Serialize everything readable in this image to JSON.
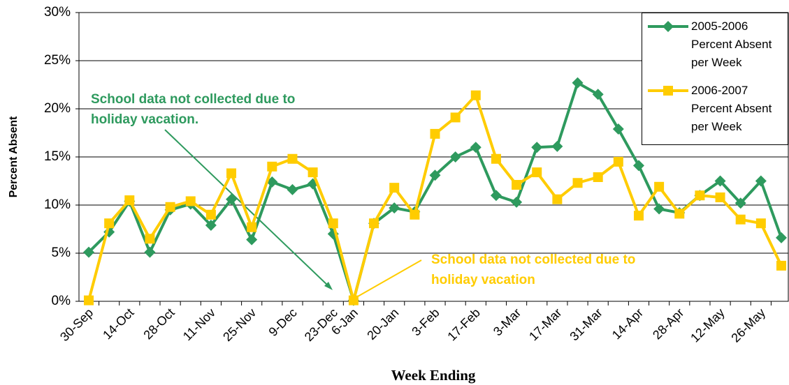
{
  "chart_data": {
    "type": "line",
    "x_label": "Week Ending",
    "y_label": "Percent Absent",
    "categories": [
      "30-Sep",
      null,
      "14-Oct",
      null,
      "28-Oct",
      null,
      "11-Nov",
      null,
      "25-Nov",
      null,
      "9-Dec",
      null,
      "23-Dec",
      "6-Jan",
      null,
      "20-Jan",
      null,
      "3-Feb",
      null,
      "17-Feb",
      null,
      "3-Mar",
      null,
      "17-Mar",
      null,
      "31-Mar",
      null,
      "14-Apr",
      null,
      "28-Apr",
      null,
      "12-May",
      null,
      "26-May",
      null
    ],
    "series": [
      {
        "name": "2005-2006 Percent Absent per Week",
        "color": "#2e9a5e",
        "marker": "diamond",
        "values": [
          5.1,
          7.2,
          10.4,
          5.1,
          9.5,
          10.1,
          7.9,
          10.6,
          6.4,
          12.4,
          11.6,
          12.2,
          7.0,
          0.1,
          8.1,
          9.7,
          9.3,
          13.1,
          15.0,
          16.0,
          11.0,
          10.3,
          16.0,
          16.1,
          22.7,
          21.5,
          17.9,
          14.1,
          9.6,
          9.2,
          11.0,
          12.5,
          10.2,
          12.5,
          6.6
        ]
      },
      {
        "name": "2006-2007 Percent Absent per Week",
        "color": "#ffcc00",
        "marker": "square",
        "values": [
          0.1,
          8.1,
          10.5,
          6.5,
          9.8,
          10.4,
          9.0,
          13.3,
          7.7,
          14.0,
          14.8,
          13.4,
          8.1,
          0.1,
          8.1,
          11.8,
          9.0,
          17.4,
          19.1,
          21.4,
          14.8,
          12.1,
          13.4,
          10.6,
          12.3,
          12.9,
          14.5,
          8.9,
          11.9,
          9.1,
          11.0,
          10.8,
          8.5,
          8.1,
          3.7
        ]
      }
    ],
    "ylim": [
      0,
      30
    ],
    "yticks": [
      {
        "value": 0,
        "label": "0%"
      },
      {
        "value": 5,
        "label": "5%"
      },
      {
        "value": 10,
        "label": "10%"
      },
      {
        "value": 15,
        "label": "15%"
      },
      {
        "value": 20,
        "label": "20%"
      },
      {
        "value": 25,
        "label": "25%"
      },
      {
        "value": 30,
        "label": "30%"
      }
    ],
    "grid": true,
    "legend_position": "upper right",
    "annotations": [
      {
        "lines": [
          "School data not collected due to",
          "holiday vacation."
        ],
        "color": "#2e9a5e"
      },
      {
        "lines": [
          "School data not collected due to",
          "holiday vacation"
        ],
        "color": "#ffcc00"
      }
    ]
  }
}
